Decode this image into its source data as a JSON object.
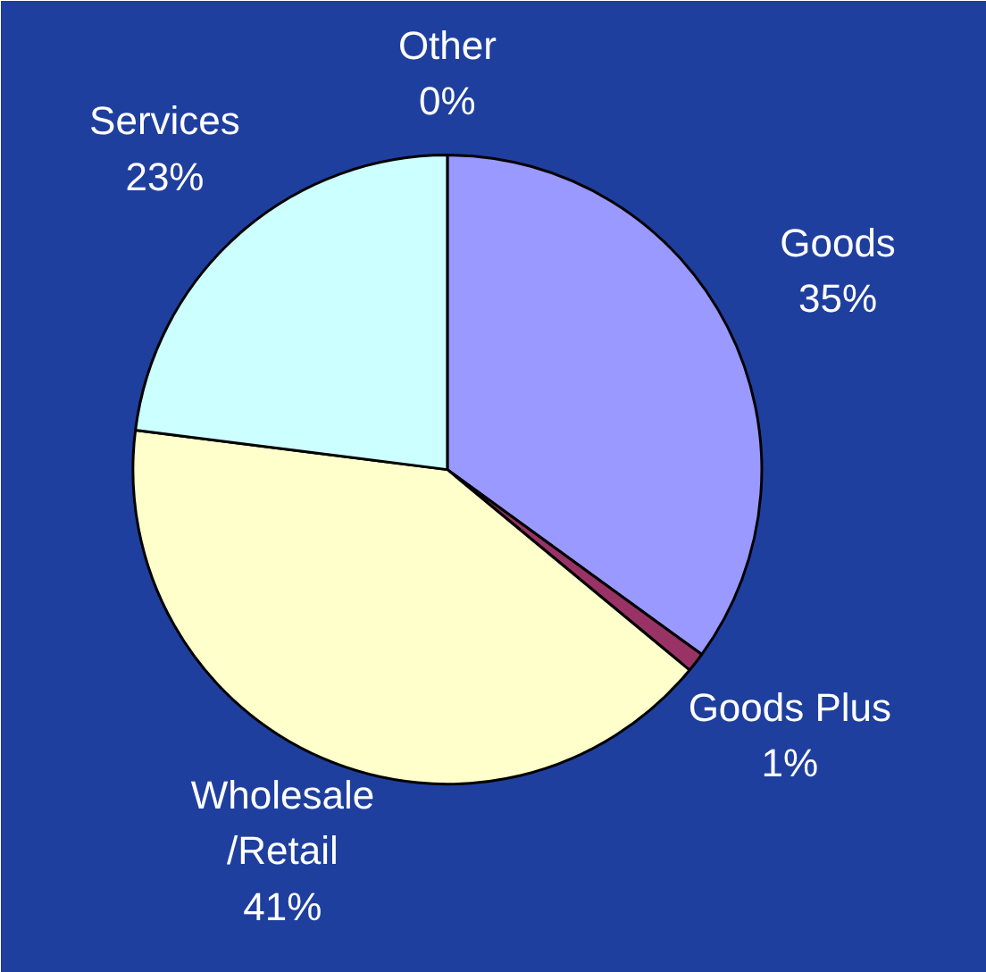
{
  "chart_data": {
    "type": "pie",
    "categories": [
      "Goods",
      "Goods Plus",
      "Wholesale\n/Retail",
      "Services",
      "Other"
    ],
    "values": [
      35,
      1,
      41,
      23,
      0
    ],
    "value_labels": [
      "35%",
      "1%",
      "41%",
      "23%",
      "0%"
    ],
    "colors": [
      "#9999ff",
      "#993366",
      "#ffffcc",
      "#ccffff",
      "#000000"
    ]
  }
}
